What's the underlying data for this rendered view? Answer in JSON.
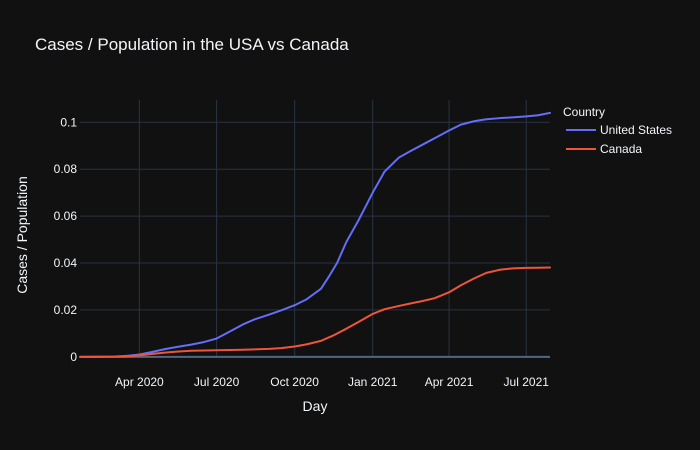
{
  "chart_data": {
    "type": "line",
    "title": "Cases / Population in the USA vs Canada",
    "xlabel": "Day",
    "ylabel": "Cases / Population",
    "x_ticks": [
      "Apr 2020",
      "Jul 2020",
      "Oct 2020",
      "Jan 2021",
      "Apr 2021",
      "Jul 2021"
    ],
    "x_tick_dates": [
      "2020-04-01",
      "2020-07-01",
      "2020-10-01",
      "2021-01-01",
      "2021-04-01",
      "2021-07-01"
    ],
    "xlim": [
      "2020-01-22",
      "2021-07-29"
    ],
    "y_ticks": [
      "0",
      "0.02",
      "0.04",
      "0.06",
      "0.08",
      "0.1"
    ],
    "y_tick_values": [
      0,
      0.02,
      0.04,
      0.06,
      0.08,
      0.1
    ],
    "ylim": [
      -0.0005,
      0.1095
    ],
    "grid": true,
    "legend": {
      "title": "Country",
      "position": "top-right"
    },
    "series": [
      {
        "name": "United States",
        "color": "#636efa",
        "points": [
          [
            "2020-01-22",
            0
          ],
          [
            "2020-03-01",
            0.0001
          ],
          [
            "2020-03-20",
            0.0005
          ],
          [
            "2020-04-01",
            0.001
          ],
          [
            "2020-04-15",
            0.002
          ],
          [
            "2020-05-01",
            0.0033
          ],
          [
            "2020-05-15",
            0.0042
          ],
          [
            "2020-06-01",
            0.0052
          ],
          [
            "2020-06-15",
            0.0062
          ],
          [
            "2020-07-01",
            0.0078
          ],
          [
            "2020-07-15",
            0.0105
          ],
          [
            "2020-08-01",
            0.0138
          ],
          [
            "2020-08-15",
            0.016
          ],
          [
            "2020-09-01",
            0.018
          ],
          [
            "2020-09-15",
            0.0198
          ],
          [
            "2020-10-01",
            0.022
          ],
          [
            "2020-10-15",
            0.0245
          ],
          [
            "2020-11-01",
            0.029
          ],
          [
            "2020-11-10",
            0.034
          ],
          [
            "2020-11-20",
            0.04
          ],
          [
            "2020-12-01",
            0.049
          ],
          [
            "2020-12-15",
            0.058
          ],
          [
            "2021-01-01",
            0.07
          ],
          [
            "2021-01-15",
            0.079
          ],
          [
            "2021-02-01",
            0.085
          ],
          [
            "2021-02-15",
            0.0878
          ],
          [
            "2021-03-01",
            0.0905
          ],
          [
            "2021-03-15",
            0.0932
          ],
          [
            "2021-04-01",
            0.0965
          ],
          [
            "2021-04-15",
            0.099
          ],
          [
            "2021-05-01",
            0.1005
          ],
          [
            "2021-05-15",
            0.1013
          ],
          [
            "2021-06-01",
            0.1018
          ],
          [
            "2021-06-15",
            0.1021
          ],
          [
            "2021-07-01",
            0.1025
          ],
          [
            "2021-07-15",
            0.103
          ],
          [
            "2021-07-29",
            0.104
          ]
        ]
      },
      {
        "name": "Canada",
        "color": "#ef553b",
        "points": [
          [
            "2020-01-22",
            0
          ],
          [
            "2020-03-15",
            0.0001
          ],
          [
            "2020-04-01",
            0.0006
          ],
          [
            "2020-04-15",
            0.0012
          ],
          [
            "2020-05-01",
            0.0018
          ],
          [
            "2020-05-15",
            0.0022
          ],
          [
            "2020-06-01",
            0.0026
          ],
          [
            "2020-07-01",
            0.0028
          ],
          [
            "2020-08-01",
            0.003
          ],
          [
            "2020-09-01",
            0.0034
          ],
          [
            "2020-09-15",
            0.0037
          ],
          [
            "2020-10-01",
            0.0044
          ],
          [
            "2020-10-15",
            0.0053
          ],
          [
            "2020-11-01",
            0.0068
          ],
          [
            "2020-11-15",
            0.009
          ],
          [
            "2020-12-01",
            0.012
          ],
          [
            "2020-12-15",
            0.0148
          ],
          [
            "2021-01-01",
            0.0183
          ],
          [
            "2021-01-15",
            0.0203
          ],
          [
            "2021-02-01",
            0.0217
          ],
          [
            "2021-02-15",
            0.0228
          ],
          [
            "2021-03-01",
            0.0238
          ],
          [
            "2021-03-15",
            0.025
          ],
          [
            "2021-04-01",
            0.0275
          ],
          [
            "2021-04-15",
            0.0305
          ],
          [
            "2021-05-01",
            0.0335
          ],
          [
            "2021-05-15",
            0.0358
          ],
          [
            "2021-06-01",
            0.0372
          ],
          [
            "2021-06-15",
            0.0377
          ],
          [
            "2021-07-01",
            0.0379
          ],
          [
            "2021-07-15",
            0.038
          ],
          [
            "2021-07-29",
            0.0381
          ]
        ]
      }
    ]
  },
  "colors": {
    "background": "#111111",
    "grid": "#283442",
    "zero_line": "#506784",
    "text": "#f2f5fa"
  }
}
